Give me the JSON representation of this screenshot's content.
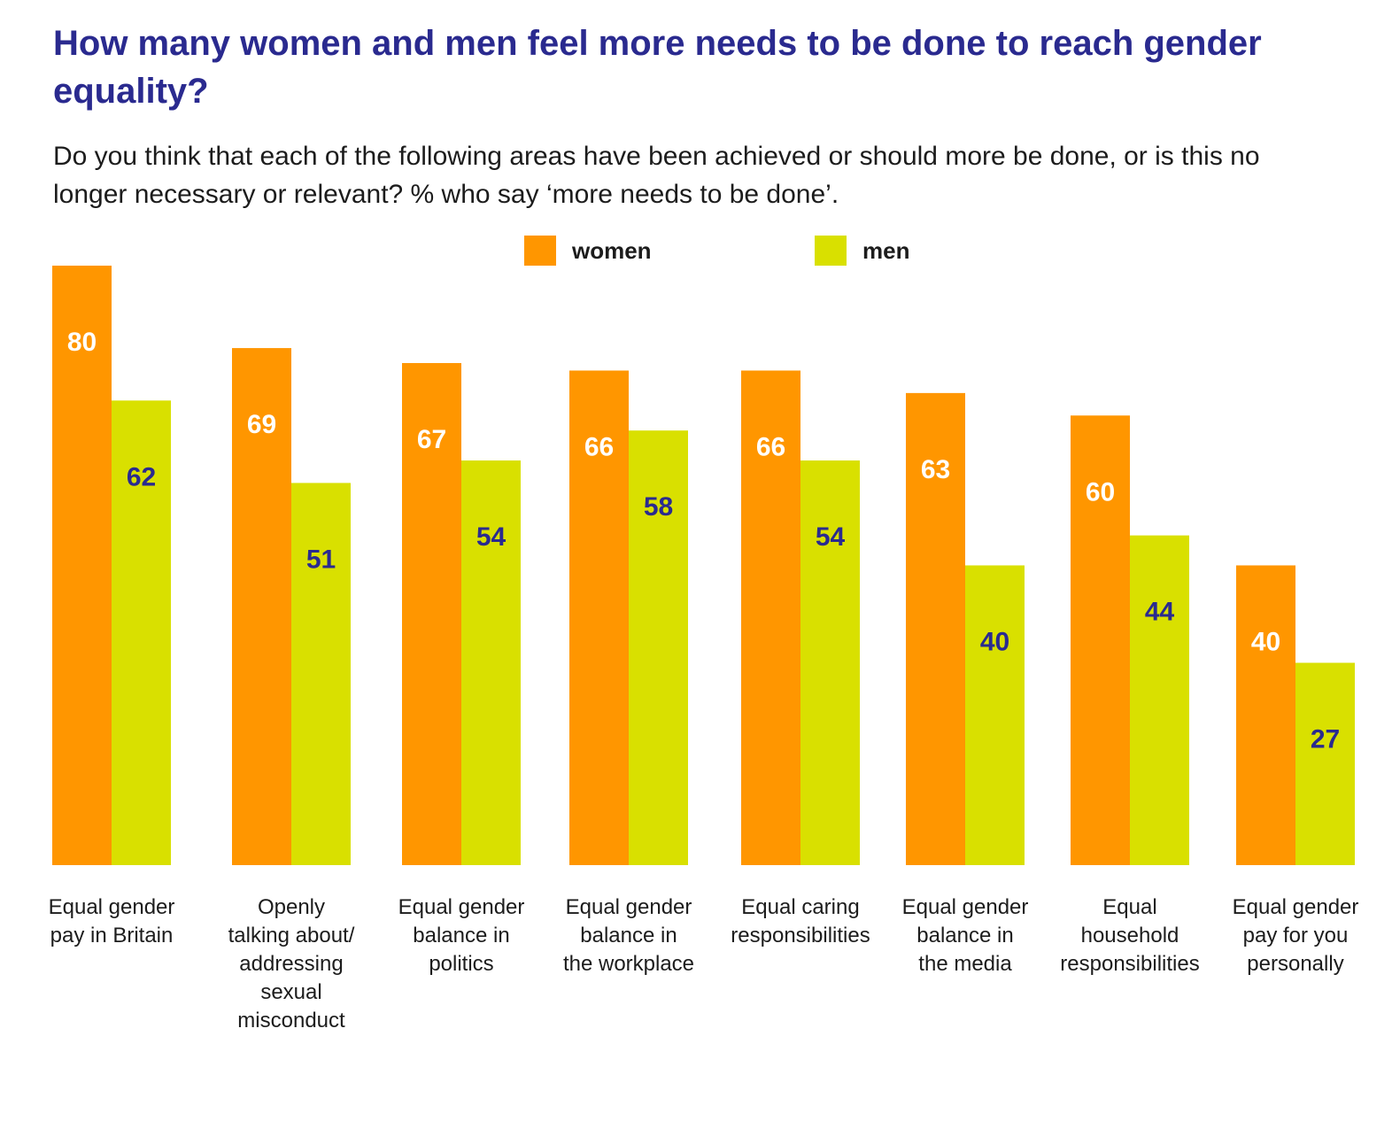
{
  "colors": {
    "women": "#ff9600",
    "men": "#d9e000",
    "title": "#2a2a8f",
    "women_label": "#ffffff",
    "men_label": "#2a2a8f"
  },
  "chart_data": {
    "type": "bar",
    "title": "How many women and men feel more needs to be done to reach gender equality?",
    "subtitle": "Do you think that each of the following areas have been achieved or should more be done, or is this no longer necessary or relevant? % who say ‘more needs to be done’.",
    "categories": [
      [
        "Equal gender",
        "pay in Britain"
      ],
      [
        "Openly",
        "talking about/",
        "addressing",
        "sexual",
        "misconduct"
      ],
      [
        "Equal gender",
        "balance in",
        "politics"
      ],
      [
        "Equal gender",
        "balance in",
        "the workplace"
      ],
      [
        "Equal caring",
        "responsibilities"
      ],
      [
        "Equal gender",
        "balance in",
        "the media"
      ],
      [
        "Equal",
        "household",
        "responsibilities"
      ],
      [
        "Equal gender",
        "pay for you",
        "personally"
      ]
    ],
    "series": [
      {
        "name": "women",
        "values": [
          80,
          69,
          67,
          66,
          66,
          63,
          60,
          40
        ]
      },
      {
        "name": "men",
        "values": [
          62,
          51,
          54,
          58,
          54,
          40,
          44,
          27
        ]
      }
    ],
    "ylim": [
      0,
      80
    ],
    "xlabel": "",
    "ylabel": "",
    "legend": "top-center",
    "grid": false
  }
}
